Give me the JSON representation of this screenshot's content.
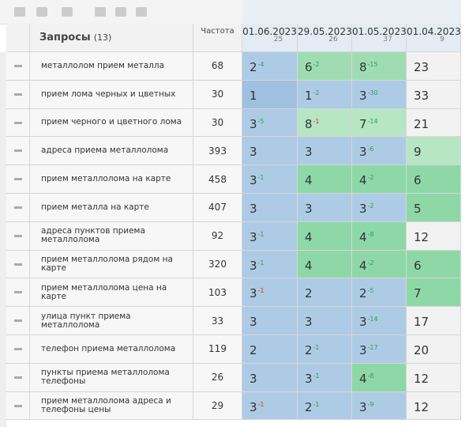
{
  "header": {
    "query_title": "Запросы",
    "query_count": "(13)",
    "frequency_title": "Частота",
    "dates": [
      {
        "date": "01.06.2023",
        "count": 25
      },
      {
        "date": "29.05.2023",
        "count": 26
      },
      {
        "date": "01.05.2023",
        "count": 37
      },
      {
        "date": "01.04.2023",
        "count": 9
      }
    ]
  },
  "rows": [
    {
      "query": "металлолом прием металла",
      "frequency": 68,
      "positions": [
        {
          "value": 2,
          "delta": -4,
          "color": "#aecbe6",
          "delta_color": "#2aa34a"
        },
        {
          "value": 6,
          "delta": -2,
          "color": "#9fdcb4",
          "delta_color": "#2aa34a"
        },
        {
          "value": 8,
          "delta": -15,
          "color": "#9fdcb4",
          "delta_color": "#2aa34a"
        },
        {
          "value": 23,
          "color": "#f2f2f2"
        }
      ]
    },
    {
      "query": "прием лома черных и цветных",
      "frequency": 30,
      "positions": [
        {
          "value": 1,
          "color": "#9fc0e0"
        },
        {
          "value": 1,
          "delta": -2,
          "color": "#aecbe6",
          "delta_color": "#2aa34a"
        },
        {
          "value": 3,
          "delta": -30,
          "color": "#aecbe6",
          "delta_color": "#2aa34a"
        },
        {
          "value": 33,
          "color": "#f2f2f2"
        }
      ]
    },
    {
      "query": "прием черного и цветного лома",
      "frequency": 30,
      "positions": [
        {
          "value": 3,
          "delta": -5,
          "color": "#aecbe6",
          "delta_color": "#2aa34a"
        },
        {
          "value": 8,
          "delta": -1,
          "color": "#b6e6c4",
          "delta_color": "#d9302c"
        },
        {
          "value": 7,
          "delta": -14,
          "color": "#b6e6c4",
          "delta_color": "#2aa34a"
        },
        {
          "value": 21,
          "color": "#f2f2f2"
        }
      ]
    },
    {
      "query": "адреса приема металлолома",
      "frequency": 393,
      "positions": [
        {
          "value": 3,
          "color": "#aecbe6"
        },
        {
          "value": 3,
          "color": "#aecbe6"
        },
        {
          "value": 3,
          "delta": -6,
          "color": "#aecbe6",
          "delta_color": "#2aa34a"
        },
        {
          "value": 9,
          "color": "#b6e6c4"
        }
      ]
    },
    {
      "query": "прием металлолома на карте",
      "frequency": 458,
      "positions": [
        {
          "value": 3,
          "delta": -1,
          "color": "#aecbe6",
          "delta_color": "#2aa34a"
        },
        {
          "value": 4,
          "color": "#8ed8a8"
        },
        {
          "value": 4,
          "delta": -2,
          "color": "#8ed8a8",
          "delta_color": "#2aa34a"
        },
        {
          "value": 6,
          "color": "#8ed8a8"
        }
      ]
    },
    {
      "query": "прием металла на карте",
      "frequency": 407,
      "positions": [
        {
          "value": 3,
          "color": "#aecbe6"
        },
        {
          "value": 3,
          "color": "#aecbe6"
        },
        {
          "value": 3,
          "delta": -2,
          "color": "#aecbe6",
          "delta_color": "#2aa34a"
        },
        {
          "value": 5,
          "color": "#8ed8a8"
        }
      ]
    },
    {
      "query": "адреса пунктов приема металлолома",
      "frequency": 92,
      "positions": [
        {
          "value": 3,
          "delta": -1,
          "color": "#aecbe6",
          "delta_color": "#2aa34a"
        },
        {
          "value": 4,
          "color": "#8ed8a8"
        },
        {
          "value": 4,
          "delta": -8,
          "color": "#8ed8a8",
          "delta_color": "#2aa34a"
        },
        {
          "value": 12,
          "color": "#f2f2f2"
        }
      ]
    },
    {
      "query": "прием металлолома рядом на карте",
      "frequency": 320,
      "positions": [
        {
          "value": 3,
          "delta": -1,
          "color": "#aecbe6",
          "delta_color": "#2aa34a"
        },
        {
          "value": 4,
          "color": "#8ed8a8"
        },
        {
          "value": 4,
          "delta": -2,
          "color": "#8ed8a8",
          "delta_color": "#2aa34a"
        },
        {
          "value": 6,
          "color": "#8ed8a8"
        }
      ]
    },
    {
      "query": "прием металлолома цена на карте",
      "frequency": 103,
      "positions": [
        {
          "value": 3,
          "delta": -1,
          "color": "#aecbe6",
          "delta_color": "#d9302c"
        },
        {
          "value": 2,
          "color": "#aecbe6"
        },
        {
          "value": 2,
          "delta": -5,
          "color": "#aecbe6",
          "delta_color": "#2aa34a"
        },
        {
          "value": 7,
          "color": "#8ed8a8"
        }
      ]
    },
    {
      "query": "улица пункт приема металлолома",
      "frequency": 33,
      "positions": [
        {
          "value": 3,
          "color": "#aecbe6"
        },
        {
          "value": 3,
          "color": "#aecbe6"
        },
        {
          "value": 3,
          "delta": -14,
          "color": "#aecbe6",
          "delta_color": "#2aa34a"
        },
        {
          "value": 17,
          "color": "#f2f2f2"
        }
      ]
    },
    {
      "query": "телефон приема металлолома",
      "frequency": 119,
      "positions": [
        {
          "value": 2,
          "color": "#aecbe6"
        },
        {
          "value": 2,
          "delta": -1,
          "color": "#aecbe6",
          "delta_color": "#2aa34a"
        },
        {
          "value": 3,
          "delta": -17,
          "color": "#aecbe6",
          "delta_color": "#2aa34a"
        },
        {
          "value": 20,
          "color": "#f2f2f2"
        }
      ]
    },
    {
      "query": "пункты приема металлолома телефоны",
      "frequency": 26,
      "positions": [
        {
          "value": 3,
          "color": "#aecbe6"
        },
        {
          "value": 3,
          "delta": -1,
          "color": "#aecbe6",
          "delta_color": "#2aa34a"
        },
        {
          "value": 4,
          "delta": -8,
          "color": "#8ed8a8",
          "delta_color": "#2aa34a"
        },
        {
          "value": 12,
          "color": "#f2f2f2"
        }
      ]
    },
    {
      "query": "прием металлолома адреса и телефоны цены",
      "frequency": 29,
      "positions": [
        {
          "value": 3,
          "delta": -1,
          "color": "#aecbe6",
          "delta_color": "#d9302c"
        },
        {
          "value": 2,
          "delta": -1,
          "color": "#aecbe6",
          "delta_color": "#2aa34a"
        },
        {
          "value": 3,
          "delta": -9,
          "color": "#aecbe6",
          "delta_color": "#2aa34a"
        },
        {
          "value": 12,
          "color": "#f2f2f2"
        }
      ]
    }
  ]
}
